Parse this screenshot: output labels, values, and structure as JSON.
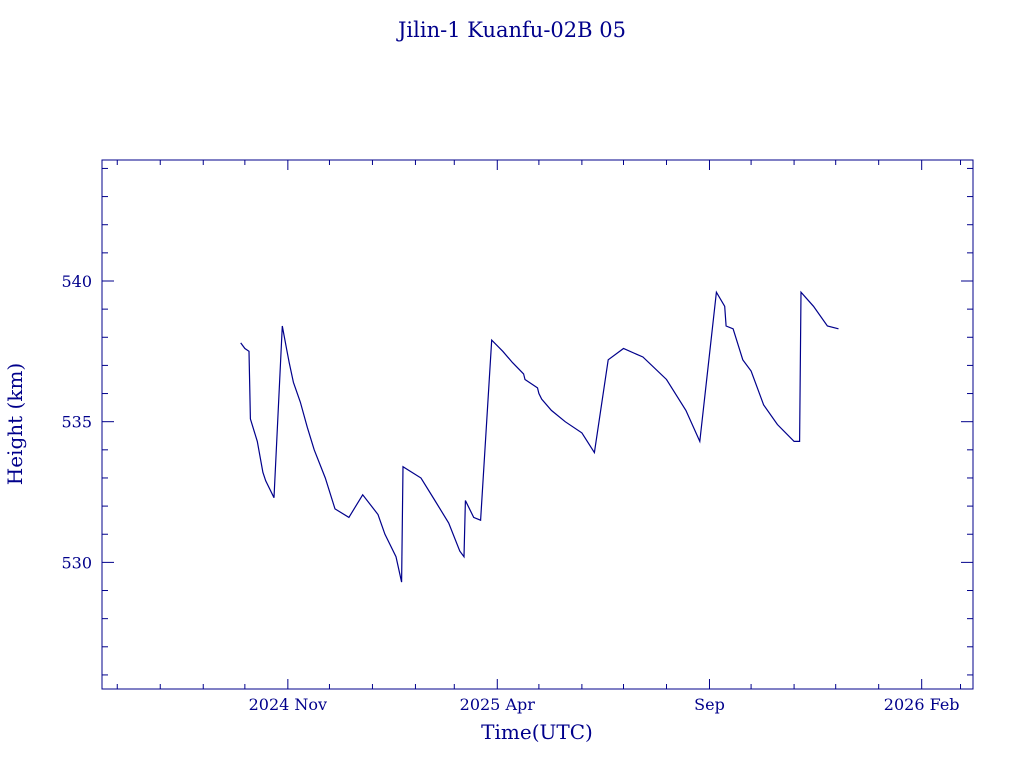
{
  "chart_data": {
    "type": "line",
    "title": "Jilin-1 Kuanfu-02B 05",
    "xlabel": "Time(UTC)",
    "ylabel": "Height (km)",
    "color": "#00008b",
    "xlim": [
      "2024-06-20",
      "2026-03-10"
    ],
    "ylim": [
      525.5,
      544.3
    ],
    "x_ticks": [
      {
        "date": "2024-11-01",
        "label": "2024 Nov"
      },
      {
        "date": "2025-04-01",
        "label": "2025 Apr"
      },
      {
        "date": "2025-09-01",
        "label": "Sep"
      },
      {
        "date": "2026-02-01",
        "label": "2026 Feb"
      }
    ],
    "y_ticks": [
      530,
      535,
      540
    ],
    "grid": false,
    "series": [
      {
        "x": [
          "2024-09-28",
          "2024-10-01",
          "2024-10-04",
          "2024-10-05",
          "2024-10-10",
          "2024-10-14",
          "2024-10-16",
          "2024-10-22",
          "2024-10-28",
          "2024-10-31",
          "2024-11-02",
          "2024-11-05",
          "2024-11-10",
          "2024-11-15",
          "2024-11-20",
          "2024-11-28",
          "2024-12-05",
          "2024-12-15",
          "2024-12-25",
          "2025-01-05",
          "2025-01-10",
          "2025-01-18",
          "2025-01-22",
          "2025-01-23",
          "2025-02-05",
          "2025-02-15",
          "2025-02-25",
          "2025-03-05",
          "2025-03-08",
          "2025-03-09",
          "2025-03-15",
          "2025-03-20",
          "2025-03-28",
          "2025-04-05",
          "2025-04-12",
          "2025-04-20",
          "2025-04-21",
          "2025-04-30",
          "2025-05-01",
          "2025-05-03",
          "2025-05-10",
          "2025-05-20",
          "2025-06-01",
          "2025-06-10",
          "2025-06-20",
          "2025-07-01",
          "2025-07-15",
          "2025-08-01",
          "2025-08-15",
          "2025-08-25",
          "2025-09-06",
          "2025-09-12",
          "2025-09-13",
          "2025-09-18",
          "2025-09-25",
          "2025-10-01",
          "2025-10-10",
          "2025-10-20",
          "2025-11-01",
          "2025-11-05",
          "2025-11-06",
          "2025-11-15",
          "2025-11-25",
          "2025-12-03"
        ],
        "values": [
          537.8,
          537.6,
          537.5,
          535.1,
          534.3,
          533.2,
          532.9,
          532.3,
          538.4,
          537.6,
          537.1,
          536.4,
          535.7,
          534.8,
          534.0,
          533.0,
          531.9,
          531.6,
          532.4,
          531.7,
          531.0,
          530.2,
          529.3,
          533.4,
          533.0,
          532.2,
          531.4,
          530.4,
          530.2,
          532.2,
          531.6,
          531.5,
          537.9,
          537.5,
          537.1,
          536.7,
          536.5,
          536.2,
          536.0,
          535.8,
          535.4,
          535.0,
          534.6,
          533.9,
          537.2,
          537.6,
          537.3,
          536.5,
          535.4,
          534.3,
          539.6,
          539.1,
          538.4,
          538.3,
          537.2,
          536.8,
          535.6,
          534.9,
          534.3,
          534.3,
          539.6,
          539.1,
          538.4,
          538.3
        ]
      }
    ]
  }
}
